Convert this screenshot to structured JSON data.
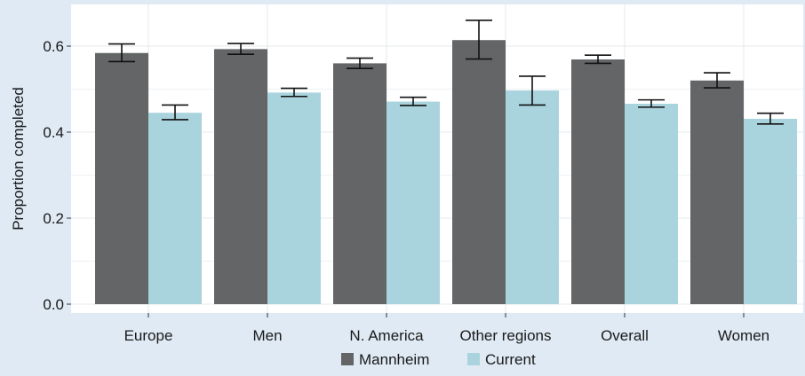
{
  "chart_data": {
    "type": "bar",
    "title": "",
    "xlabel": "",
    "ylabel": "Proportion completed",
    "ylim": [
      0.0,
      0.7
    ],
    "yticks": [
      0.0,
      0.2,
      0.4,
      0.6
    ],
    "ytick_labels": [
      "0.0",
      "0.2",
      "0.4",
      "0.6"
    ],
    "categories": [
      "Europe",
      "Men",
      "N. America",
      "Other regions",
      "Overall",
      "Women"
    ],
    "series": [
      {
        "name": "Mannheim",
        "color": "#636566",
        "values": [
          0.584,
          0.593,
          0.56,
          0.614,
          0.569,
          0.52
        ],
        "error_low": [
          0.564,
          0.581,
          0.548,
          0.57,
          0.56,
          0.503
        ],
        "error_high": [
          0.605,
          0.606,
          0.572,
          0.66,
          0.579,
          0.538
        ]
      },
      {
        "name": "Current",
        "color": "#a9d4de",
        "values": [
          0.445,
          0.492,
          0.471,
          0.497,
          0.466,
          0.431
        ],
        "error_low": [
          0.429,
          0.483,
          0.462,
          0.463,
          0.458,
          0.419
        ],
        "error_high": [
          0.463,
          0.502,
          0.481,
          0.53,
          0.475,
          0.444
        ]
      }
    ],
    "grid": true,
    "legend_position": "bottom"
  }
}
